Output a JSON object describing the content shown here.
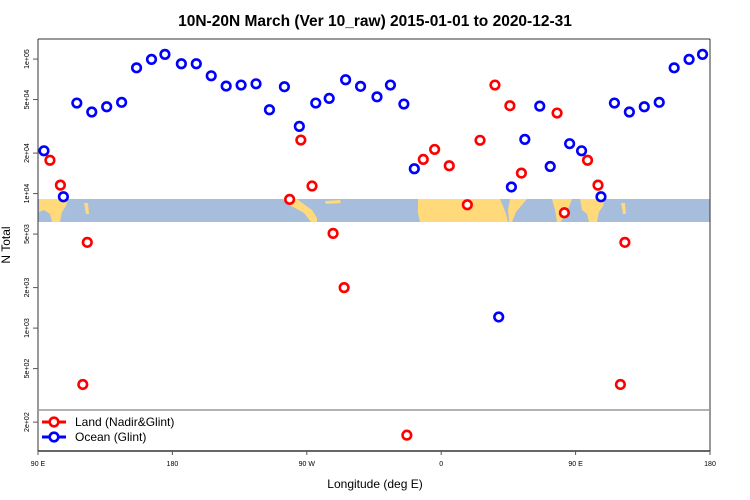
{
  "chart_data": {
    "type": "scatter",
    "title": "10N-20N March (Ver 10_raw)   2015-01-01 to 2020-12-31",
    "xlabel": "Longitude (deg E)",
    "ylabel": "N Total",
    "y_scale": "log",
    "ylim": [
      122,
      141000
    ],
    "xlim_deg_E": [
      90,
      180
    ],
    "x_wraps_past_180": true,
    "x_tick_labels": [
      "90 E",
      "180",
      "90 W",
      "0",
      "90 E",
      "180"
    ],
    "y_ticks": [
      {
        "value": 100000,
        "label": "1e+05"
      },
      {
        "value": 50000,
        "label": "5e+04"
      },
      {
        "value": 20000,
        "label": "2e+04"
      },
      {
        "value": 10000,
        "label": "1e+04"
      },
      {
        "value": 5000,
        "label": "5e+03"
      },
      {
        "value": 2000,
        "label": "2e+03"
      },
      {
        "value": 1000,
        "label": "1e+03"
      },
      {
        "value": 500,
        "label": "5e+02"
      },
      {
        "value": 200,
        "label": "2e+02"
      }
    ],
    "grid": false,
    "legend_position": "bottom-left",
    "map_background": {
      "latitude_band": "10N-20N",
      "land_color": "#FFD97A",
      "ocean_color": "#A6BDDB"
    },
    "series": [
      {
        "name": "Land (Nadir&Glint)",
        "color": "#FF0000",
        "points": [
          [
            98,
            17700
          ],
          [
            105,
            11560
          ],
          [
            123,
            4340
          ],
          [
            120,
            381
          ],
          [
            -101.5,
            9060
          ],
          [
            -94,
            25000
          ],
          [
            -86.5,
            11380
          ],
          [
            -72.4,
            5060
          ],
          [
            -65,
            2000
          ],
          [
            -23,
            160
          ],
          [
            -12,
            17950
          ],
          [
            -4.4,
            21300
          ],
          [
            5.4,
            16100
          ],
          [
            17.5,
            8260
          ],
          [
            26,
            24900
          ],
          [
            36,
            64100
          ],
          [
            46,
            45000
          ],
          [
            53.7,
            14200
          ],
          [
            77.6,
            39700
          ],
          [
            82.5,
            7200
          ]
        ]
      },
      {
        "name": "Ocean (Glint)",
        "color": "#0000FF",
        "points": [
          [
            94,
            20800
          ],
          [
            107,
            9470
          ],
          [
            116,
            47100
          ],
          [
            126,
            40400
          ],
          [
            136,
            44200
          ],
          [
            146,
            47700
          ],
          [
            156,
            86100
          ],
          [
            166,
            99500
          ],
          [
            175,
            108400
          ],
          [
            -174,
            92300
          ],
          [
            -164,
            92300
          ],
          [
            -154,
            75100
          ],
          [
            -144,
            63000
          ],
          [
            -134,
            64100
          ],
          [
            -124,
            65500
          ],
          [
            -115,
            42000
          ],
          [
            -105,
            62300
          ],
          [
            -95,
            31600
          ],
          [
            -84,
            47100
          ],
          [
            -75,
            51000
          ],
          [
            -64,
            70200
          ],
          [
            -54,
            62700
          ],
          [
            -43,
            52400
          ],
          [
            -34,
            64100
          ],
          [
            -25,
            46300
          ],
          [
            -18,
            15300
          ],
          [
            38.5,
            1210
          ],
          [
            47,
            11200
          ],
          [
            56,
            25300
          ],
          [
            66,
            44700
          ],
          [
            73,
            15900
          ],
          [
            86,
            23500
          ]
        ]
      }
    ]
  }
}
